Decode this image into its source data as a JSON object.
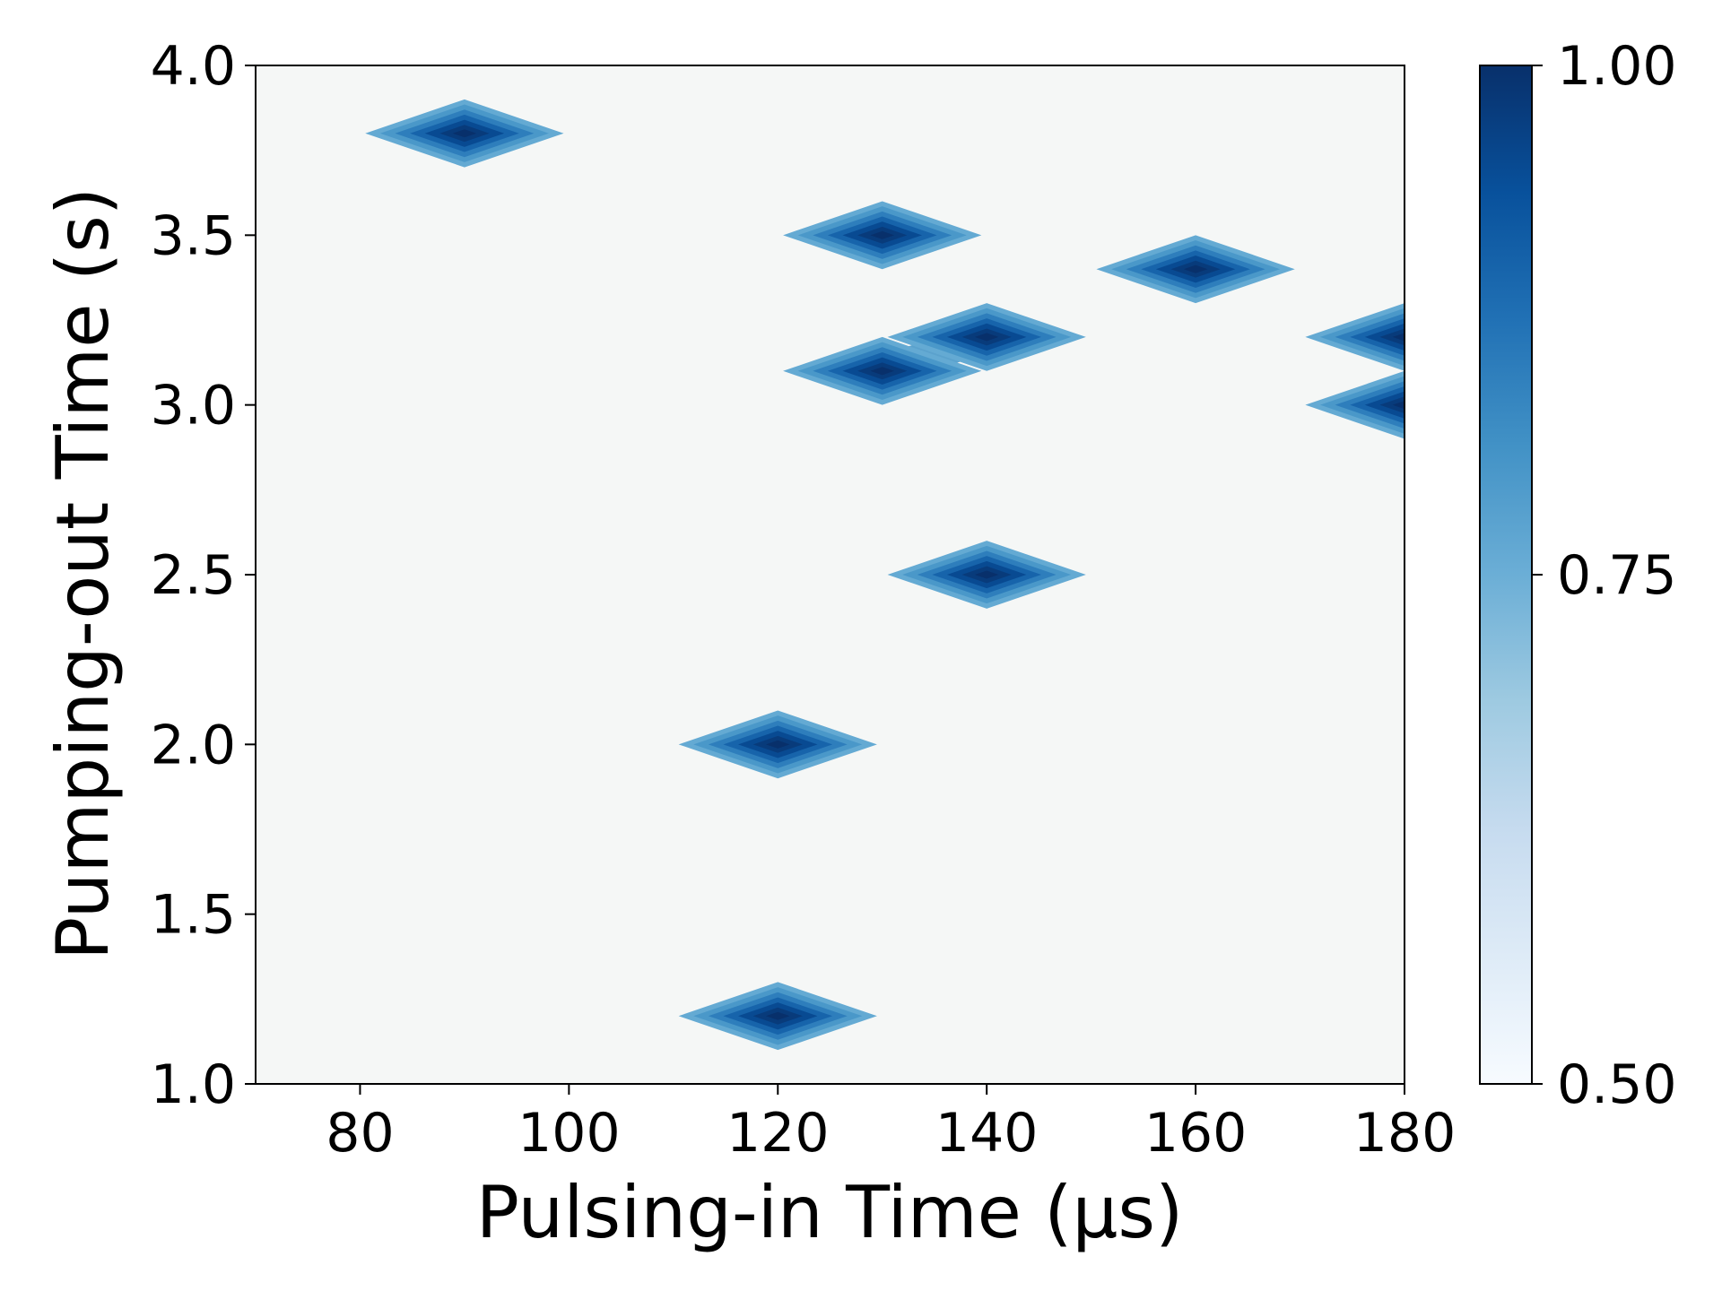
{
  "chart_data": {
    "type": "heatmap",
    "title": "",
    "xlabel": "Pulsing-in Time (µs)",
    "ylabel": "Pumping-out Time (s)",
    "xlim": [
      70,
      180
    ],
    "ylim": [
      1.0,
      4.0
    ],
    "xticks": [
      80,
      100,
      120,
      140,
      160,
      180
    ],
    "xtick_labels": [
      "80",
      "100",
      "120",
      "140",
      "160",
      "180"
    ],
    "yticks": [
      1.0,
      1.5,
      2.0,
      2.5,
      3.0,
      3.5,
      4.0
    ],
    "ytick_labels": [
      "1.0",
      "1.5",
      "2.0",
      "2.5",
      "3.0",
      "3.5",
      "4.0"
    ],
    "grid": false,
    "background_value": 0.5,
    "points": [
      {
        "x": 90,
        "y": 3.8,
        "value": 1.0
      },
      {
        "x": 130,
        "y": 3.5,
        "value": 1.0
      },
      {
        "x": 160,
        "y": 3.4,
        "value": 1.0
      },
      {
        "x": 140,
        "y": 3.2,
        "value": 1.0
      },
      {
        "x": 130,
        "y": 3.1,
        "value": 1.0
      },
      {
        "x": 180,
        "y": 3.2,
        "value": 1.0
      },
      {
        "x": 180,
        "y": 3.0,
        "value": 1.0
      },
      {
        "x": 140,
        "y": 2.5,
        "value": 1.0
      },
      {
        "x": 120,
        "y": 2.0,
        "value": 1.0
      },
      {
        "x": 120,
        "y": 1.2,
        "value": 1.0
      }
    ],
    "colorbar": {
      "colormap": "Blues",
      "range": [
        0.5,
        1.0
      ],
      "ticks": [
        0.5,
        0.75,
        1.0
      ],
      "tick_labels": [
        "0.50",
        "0.75",
        "1.00"
      ],
      "colors": [
        "#f7fbff",
        "#deebf7",
        "#c6dbef",
        "#9ecae1",
        "#6baed6",
        "#4292c6",
        "#2171b5",
        "#08519c",
        "#08306b"
      ]
    }
  }
}
